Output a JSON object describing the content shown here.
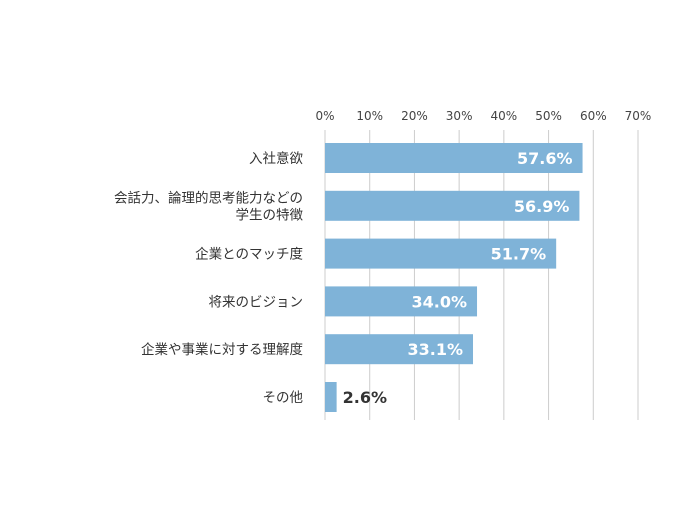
{
  "chart_data": {
    "type": "bar",
    "orientation": "horizontal",
    "title": "",
    "xlabel": "",
    "ylabel": "",
    "xlim": [
      0,
      70
    ],
    "x_ticks": [
      "0%",
      "10%",
      "20%",
      "30%",
      "40%",
      "50%",
      "60%",
      "70%"
    ],
    "grid": true,
    "categories": [
      [
        "入社意欲"
      ],
      [
        "会話力、論理的思考能力などの",
        "学生の特徴"
      ],
      [
        "企業とのマッチ度"
      ],
      [
        "将来のビジョン"
      ],
      [
        "企業や事業に対する理解度"
      ],
      [
        "その他"
      ]
    ],
    "values": [
      57.6,
      56.9,
      51.7,
      34.0,
      33.1,
      2.6
    ],
    "value_labels": [
      "57.6%",
      "56.9%",
      "51.7%",
      "34.0%",
      "33.1%",
      "2.6%"
    ],
    "bar_color": "#7fb3d8",
    "grid_color": "#cccccc",
    "label_color_inside": "#ffffff",
    "label_color_outside": "#333333"
  }
}
